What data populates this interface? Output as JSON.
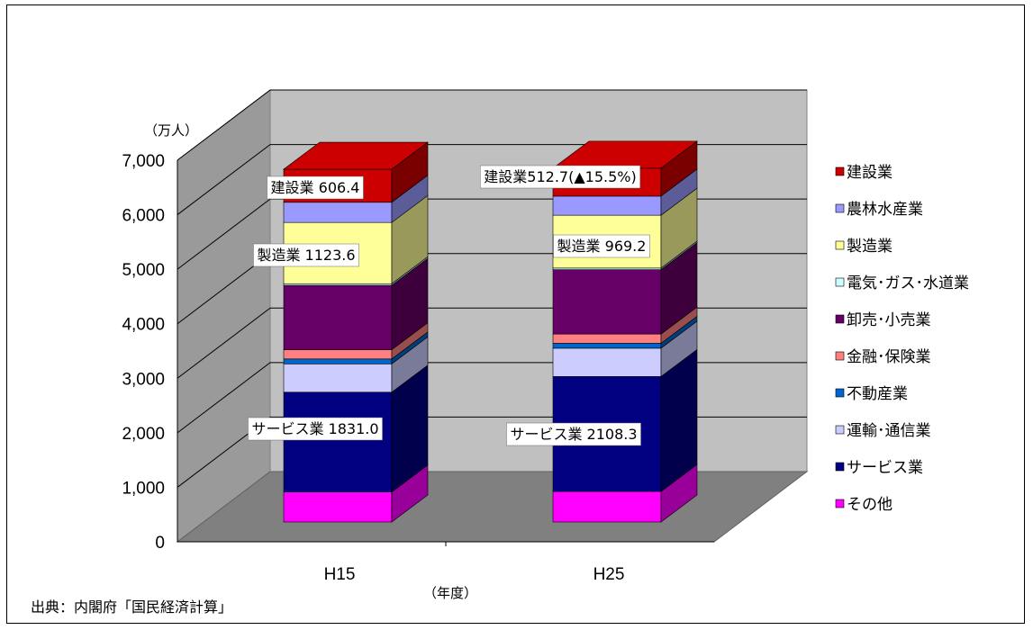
{
  "chart_data": {
    "type": "bar",
    "stacked": true,
    "three_d": true,
    "unit_label": "（万人）",
    "xlabel": "（年度）",
    "categories": [
      "H15",
      "H25"
    ],
    "ylim": [
      0,
      7000
    ],
    "yticks": [
      "0",
      "1,000",
      "2,000",
      "3,000",
      "4,000",
      "5,000",
      "6,000",
      "7,000"
    ],
    "series": [
      {
        "name": "その他",
        "values": [
          550,
          560
        ],
        "color": "#ff00ff"
      },
      {
        "name": "サービス業",
        "values": [
          1831.0,
          2108.3
        ],
        "color": "#000080"
      },
      {
        "name": "運輸・通信業",
        "values": [
          520,
          520
        ],
        "color": "#ccccff"
      },
      {
        "name": "不動産業",
        "values": [
          90,
          90
        ],
        "color": "#0066cc"
      },
      {
        "name": "金融・保険業",
        "values": [
          170,
          170
        ],
        "color": "#ff8080"
      },
      {
        "name": "卸売・小売業",
        "values": [
          1180,
          1180
        ],
        "color": "#660066"
      },
      {
        "name": "電気・ガス・水道業",
        "values": [
          30,
          30
        ],
        "color": "#ccffff"
      },
      {
        "name": "製造業",
        "values": [
          1123.6,
          969.2
        ],
        "color": "#ffff99"
      },
      {
        "name": "農林水産業",
        "values": [
          370,
          350
        ],
        "color": "#9999ff"
      },
      {
        "name": "建設業",
        "values": [
          606.4,
          512.7
        ],
        "color": "#cc0000"
      }
    ],
    "legend": [
      "建設業",
      "農林水産業",
      "製造業",
      "電気･ガス･水道業",
      "卸売･小売業",
      "金融･保険業",
      "不動産業",
      "運輸･通信業",
      "サービス業",
      "その他"
    ],
    "legend_position": "right",
    "annotations": [
      {
        "category": "H15",
        "text": "建設業 606.4"
      },
      {
        "category": "H15",
        "text": "製造業 1123.6"
      },
      {
        "category": "H15",
        "text": "サービス業 1831.0"
      },
      {
        "category": "H25",
        "text": "建設業512.7(▲15.5%)"
      },
      {
        "category": "H25",
        "text": "製造業 969.2"
      },
      {
        "category": "H25",
        "text": "サービス業 2108.3"
      }
    ],
    "grid": true
  },
  "source": "出典：内閣府「国民経済計算」"
}
